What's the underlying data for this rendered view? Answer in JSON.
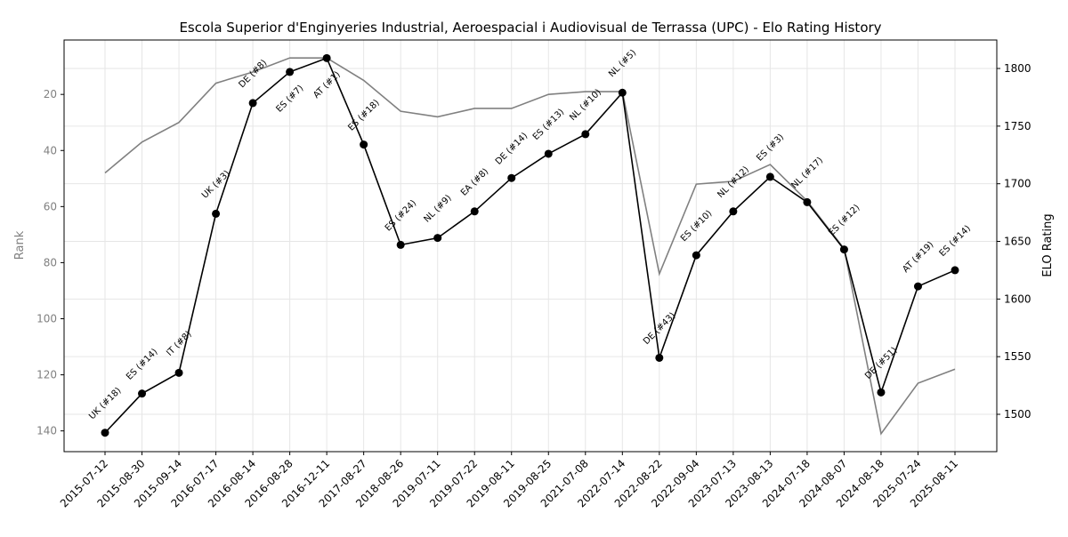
{
  "chart_data": {
    "type": "line",
    "title": "Escola Superior d'Enginyeries Industrial, Aeroespacial i Audiovisual de Terrassa (UPC) - Elo Rating History",
    "ylabel_left": "Rank",
    "ylabel_right": "ELO Rating",
    "xlabel": "",
    "grid": true,
    "x": [
      "2015-07-12",
      "2015-08-30",
      "2015-09-14",
      "2016-07-17",
      "2016-08-14",
      "2016-08-28",
      "2016-12-11",
      "2017-08-27",
      "2018-08-26",
      "2019-07-11",
      "2019-07-22",
      "2019-08-11",
      "2019-08-25",
      "2021-07-08",
      "2022-07-14",
      "2022-08-22",
      "2022-09-04",
      "2023-07-13",
      "2023-08-13",
      "2024-07-18",
      "2024-08-07",
      "2024-08-18",
      "2025-07-24",
      "2025-08-11"
    ],
    "rank_axis": {
      "ylim": [
        147.4,
        0.6
      ],
      "inverted": true,
      "ticks": [
        20,
        40,
        60,
        80,
        100,
        120,
        140
      ],
      "color": "#808080"
    },
    "elo_axis": {
      "ylim": [
        1467.6,
        1824.7
      ],
      "ticks": [
        1500,
        1550,
        1600,
        1650,
        1700,
        1750,
        1800
      ]
    },
    "series": [
      {
        "axis": "left",
        "color": "#808080",
        "marker": false,
        "values": [
          48,
          37,
          30,
          16,
          12,
          7,
          7,
          15,
          26,
          28,
          25,
          25,
          20,
          19,
          19,
          84,
          52,
          51,
          45,
          58,
          75,
          141,
          123,
          118
        ]
      },
      {
        "axis": "right",
        "color": "#000000",
        "marker": true,
        "values": [
          1484,
          1518,
          1536,
          1674,
          1770,
          1797,
          1809,
          1734,
          1647,
          1653,
          1676,
          1705,
          1726,
          1743,
          1779,
          1549,
          1638,
          1676,
          1706,
          1684,
          1643,
          1519,
          1611,
          1625
        ],
        "annotations": [
          "UK (#18)",
          "ES (#14)",
          "IT (#8)",
          "UK (#3)",
          "DE (#8)",
          "ES (#7)",
          "AT (#1)",
          "ES (#18)",
          "ES (#24)",
          "NL (#9)",
          "EA (#8)",
          "DE (#14)",
          "ES (#13)",
          "NL (#10)",
          "NL (#5)",
          "DE (#43)",
          "ES (#10)",
          "NL (#12)",
          "ES (#3)",
          "NL (#17)",
          "ES (#12)",
          "DE (#51)",
          "AT (#19)",
          "ES (#14)"
        ]
      }
    ]
  }
}
